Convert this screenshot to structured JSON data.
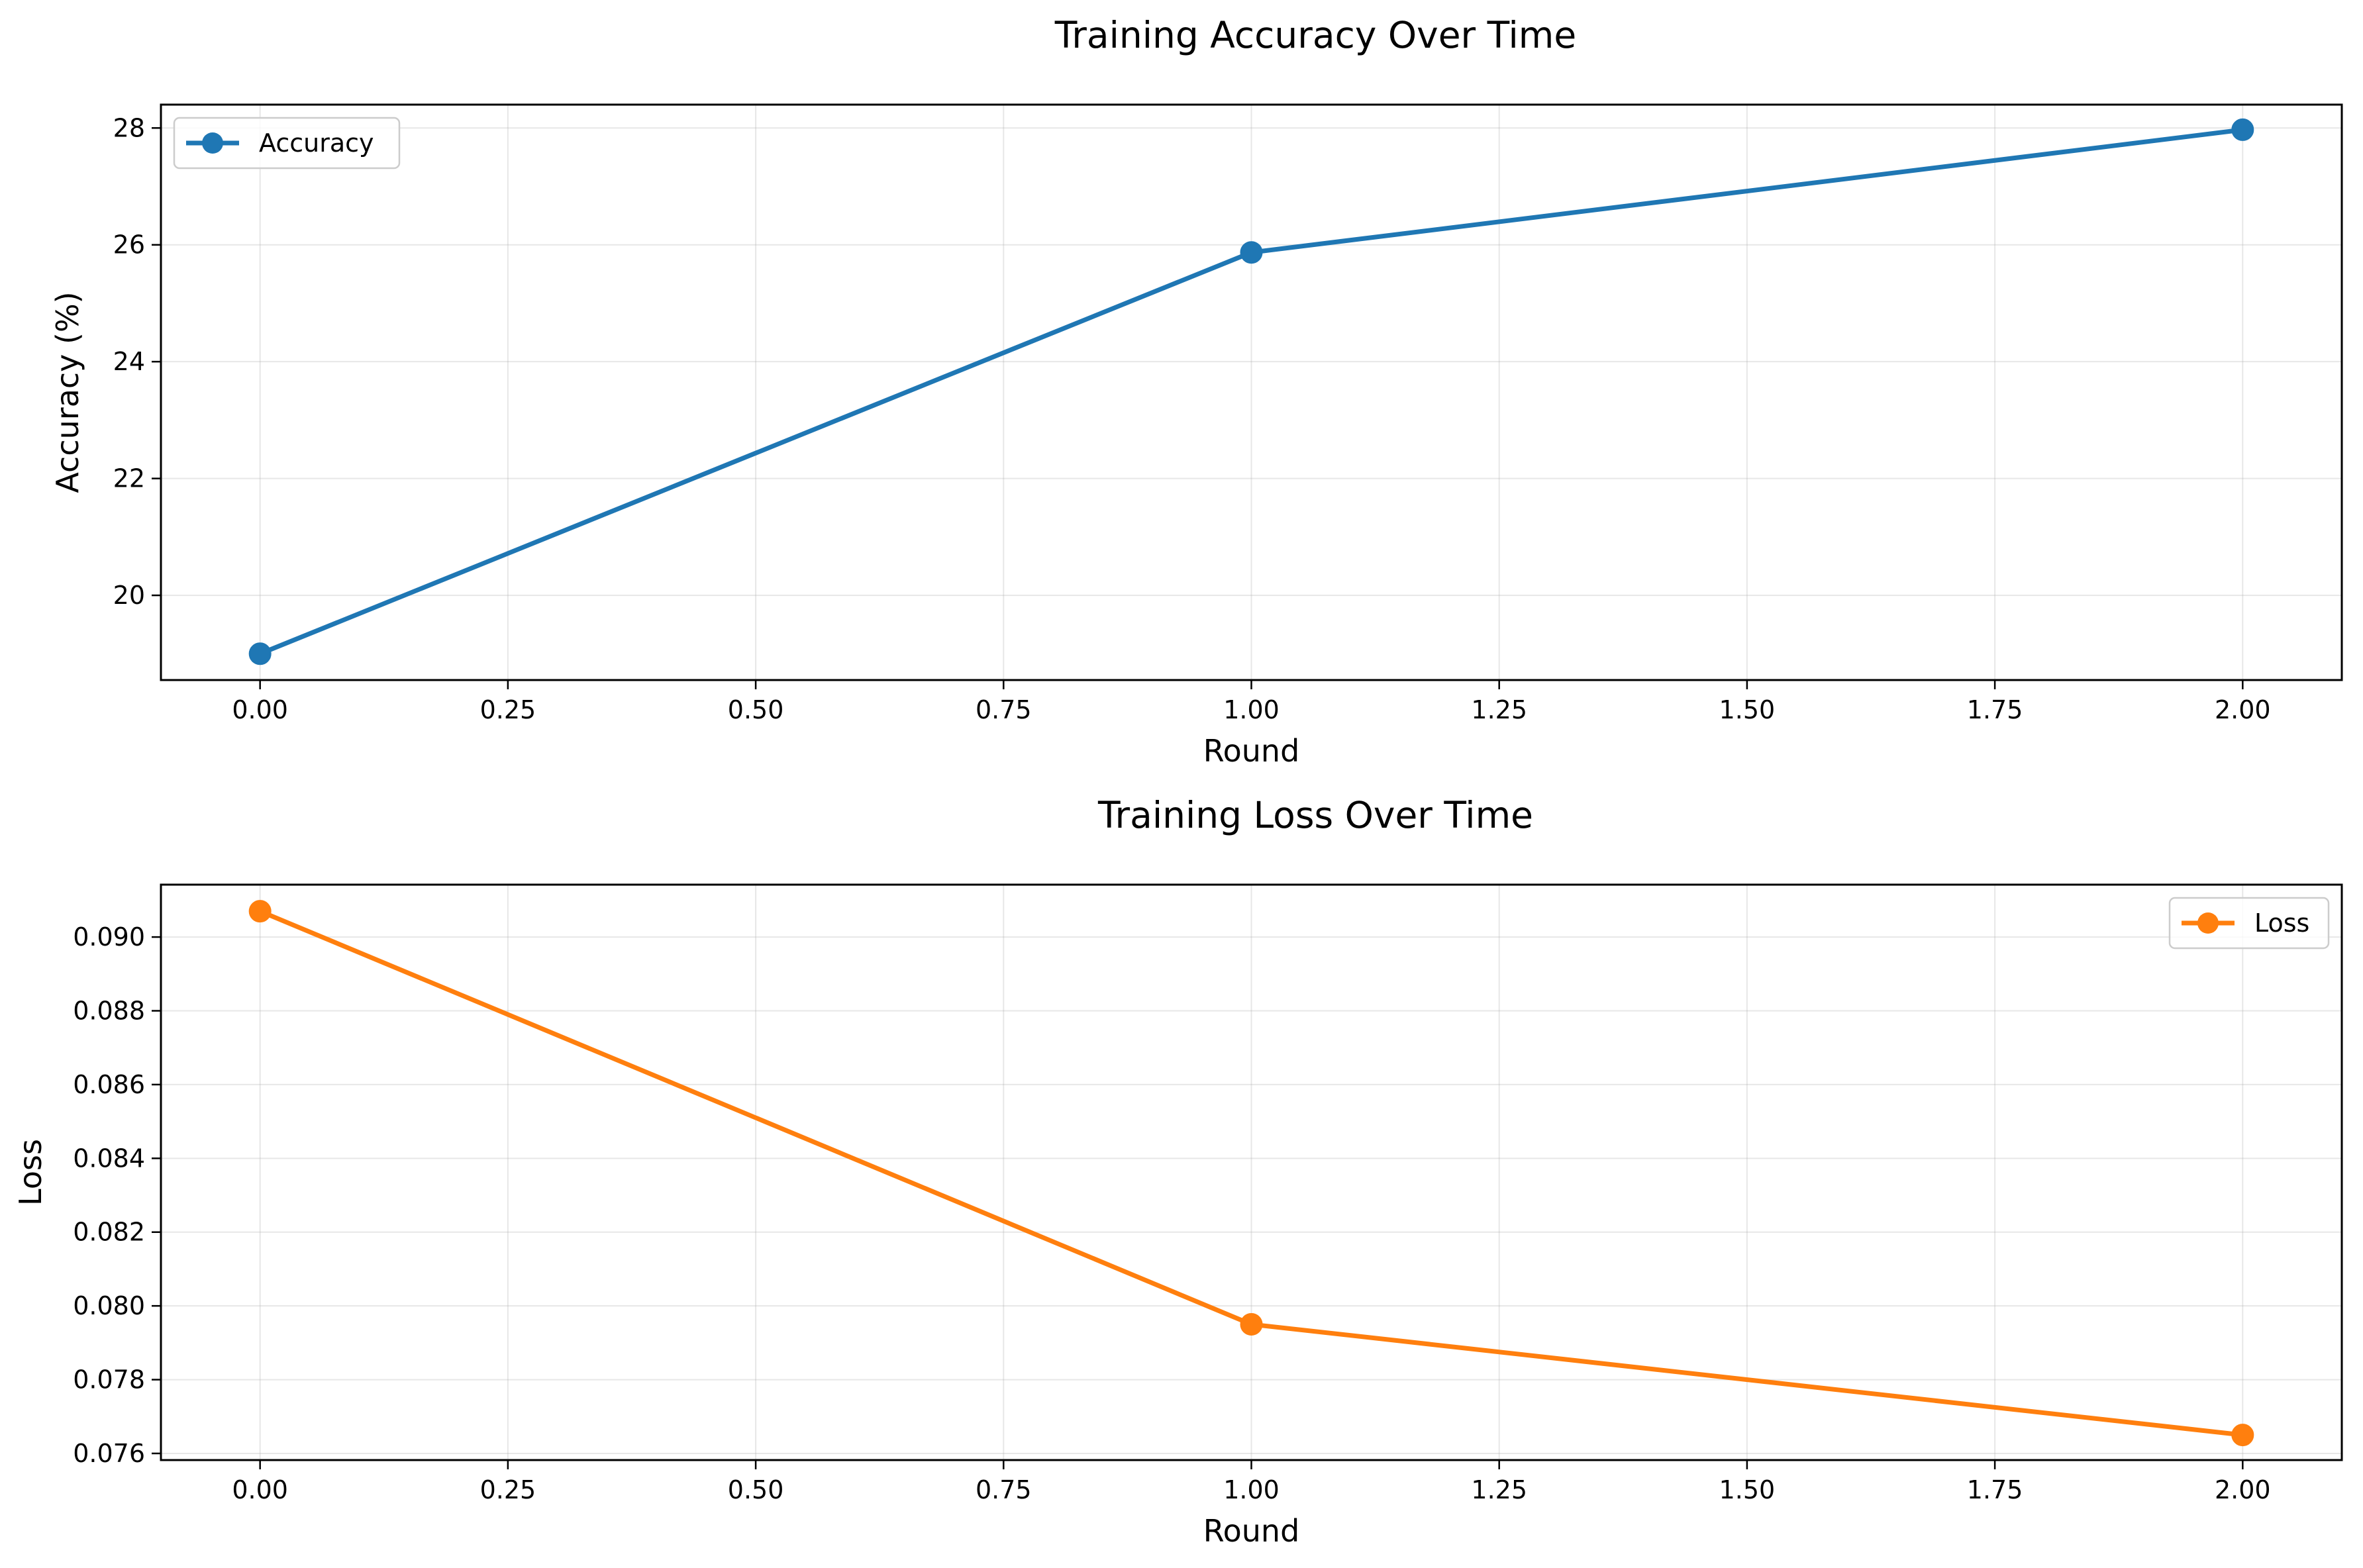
{
  "chart_data": [
    {
      "type": "line",
      "title": "Training Accuracy Over Time",
      "xlabel": "Round",
      "ylabel": "Accuracy (%)",
      "x": [
        0,
        1,
        2
      ],
      "xlim": [
        -0.1,
        2.1
      ],
      "ylim": [
        18.55,
        28.4
      ],
      "xticks": [
        0.0,
        0.25,
        0.5,
        0.75,
        1.0,
        1.25,
        1.5,
        1.75,
        2.0
      ],
      "xtick_labels": [
        "0.00",
        "0.25",
        "0.50",
        "0.75",
        "1.00",
        "1.25",
        "1.50",
        "1.75",
        "2.00"
      ],
      "yticks": [
        20,
        22,
        24,
        26,
        28
      ],
      "ytick_labels": [
        "20",
        "22",
        "24",
        "26",
        "28"
      ],
      "grid": true,
      "legend_position": "top-left",
      "series": [
        {
          "name": "Accuracy",
          "color": "#1f77b4",
          "marker": "circle",
          "values": [
            19.0,
            25.87,
            27.97
          ]
        }
      ]
    },
    {
      "type": "line",
      "title": "Training Loss Over Time",
      "xlabel": "Round",
      "ylabel": "Loss",
      "x": [
        0,
        1,
        2
      ],
      "xlim": [
        -0.1,
        2.1
      ],
      "ylim": [
        0.07582,
        0.09142
      ],
      "xticks": [
        0.0,
        0.25,
        0.5,
        0.75,
        1.0,
        1.25,
        1.5,
        1.75,
        2.0
      ],
      "xtick_labels": [
        "0.00",
        "0.25",
        "0.50",
        "0.75",
        "1.00",
        "1.25",
        "1.50",
        "1.75",
        "2.00"
      ],
      "yticks": [
        0.076,
        0.078,
        0.08,
        0.082,
        0.084,
        0.086,
        0.088,
        0.09
      ],
      "ytick_labels": [
        "0.076",
        "0.078",
        "0.080",
        "0.082",
        "0.084",
        "0.086",
        "0.088",
        "0.090"
      ],
      "grid": true,
      "legend_position": "top-right",
      "series": [
        {
          "name": "Loss",
          "color": "#ff7f0e",
          "marker": "circle",
          "values": [
            0.0907,
            0.0795,
            0.0765
          ]
        }
      ]
    }
  ]
}
